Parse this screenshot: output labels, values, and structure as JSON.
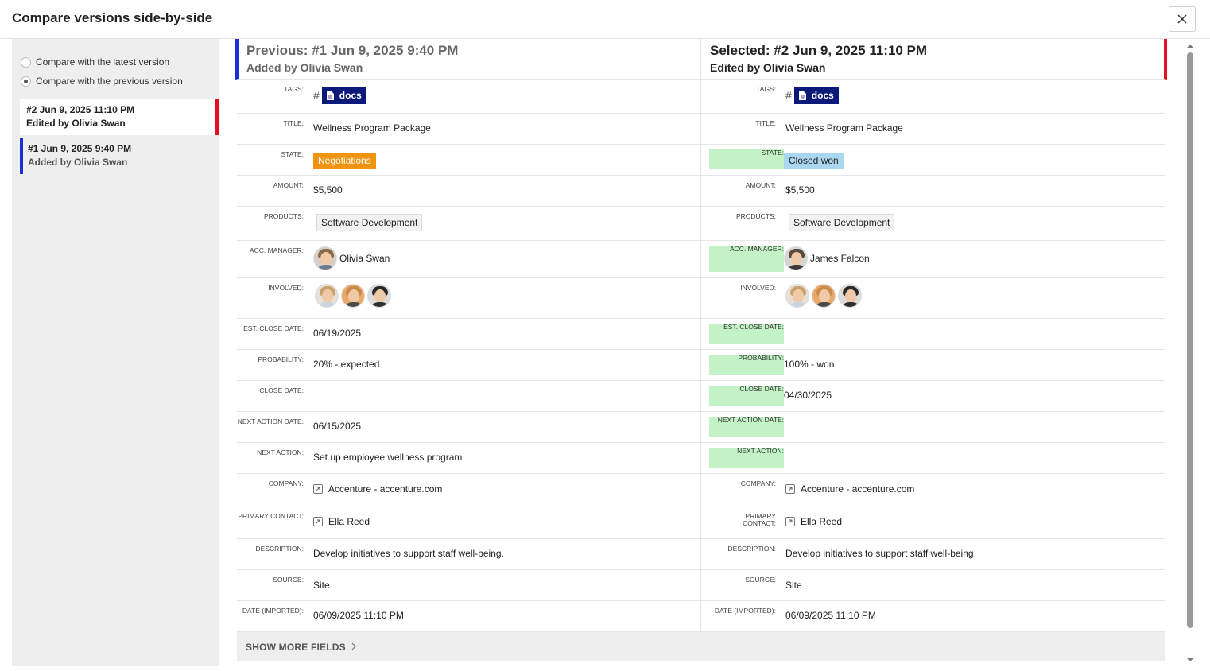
{
  "header": {
    "title": "Compare versions side-by-side"
  },
  "sidebar": {
    "radio_latest": "Compare with the latest version",
    "radio_previous": "Compare with the previous version",
    "versions": [
      {
        "title": "#2 Jun 9, 2025 11:10 PM",
        "sub": "Edited by Olivia Swan"
      },
      {
        "title": "#1 Jun 9, 2025 9:40 PM",
        "sub": "Added by Olivia Swan"
      }
    ]
  },
  "left_head": {
    "title": "Previous: #1 Jun 9, 2025 9:40 PM",
    "sub": "Added by Olivia Swan"
  },
  "right_head": {
    "title": "Selected: #2 Jun 9, 2025 11:10 PM",
    "sub": "Edited by Olivia Swan"
  },
  "labels": {
    "tags": "TAGS:",
    "title": "TITLE:",
    "state": "STATE:",
    "amount": "AMOUNT:",
    "products": "PRODUCTS:",
    "acc_manager": "ACC. MANAGER:",
    "involved": "INVOLVED:",
    "est_close": "EST. CLOSE DATE:",
    "probability": "PROBABILITY:",
    "close_date": "CLOSE DATE:",
    "next_action_date": "NEXT ACTION DATE:",
    "next_action": "NEXT ACTION:",
    "company": "COMPANY:",
    "primary_contact": "PRIMARY CONTACT:",
    "description": "DESCRIPTION:",
    "source": "SOURCE:",
    "date_imported": "DATE (IMPORTED):"
  },
  "left": {
    "tag_hash": "#",
    "tag": "docs",
    "title": "Wellness Program Package",
    "state": "Negotiations",
    "amount": "$5,500",
    "product": "Software Development",
    "acc_manager": "Olivia Swan",
    "est_close": "06/19/2025",
    "probability": "20% - expected",
    "close_date": "",
    "next_action_date": "06/15/2025",
    "next_action": "Set up employee wellness program",
    "company": "Accenture - accenture.com",
    "primary_contact": "Ella Reed",
    "description": "Develop initiatives to support staff well-being.",
    "source": "Site",
    "date_imported": "06/09/2025 11:10 PM"
  },
  "right": {
    "tag_hash": "#",
    "tag": "docs",
    "title": "Wellness Program Package",
    "state": "Closed won",
    "amount": "$5,500",
    "product": "Software Development",
    "acc_manager": "James Falcon",
    "est_close": "",
    "probability": "100% - won",
    "close_date": "04/30/2025",
    "next_action_date": "",
    "next_action": "",
    "company": "Accenture - accenture.com",
    "primary_contact": "Ella Reed",
    "description": "Develop initiatives to support staff well-being.",
    "source": "Site",
    "date_imported": "06/09/2025 11:10 PM"
  },
  "colors": {
    "tag_bg": "#0b1a7a",
    "negotiations": "#f0930f",
    "closed_won": "#a9d7f0",
    "changed": "#c3f2c6",
    "previous_accent": "#1a2fd6",
    "selected_accent": "#e3101f"
  },
  "show_more": "SHOW MORE FIELDS"
}
